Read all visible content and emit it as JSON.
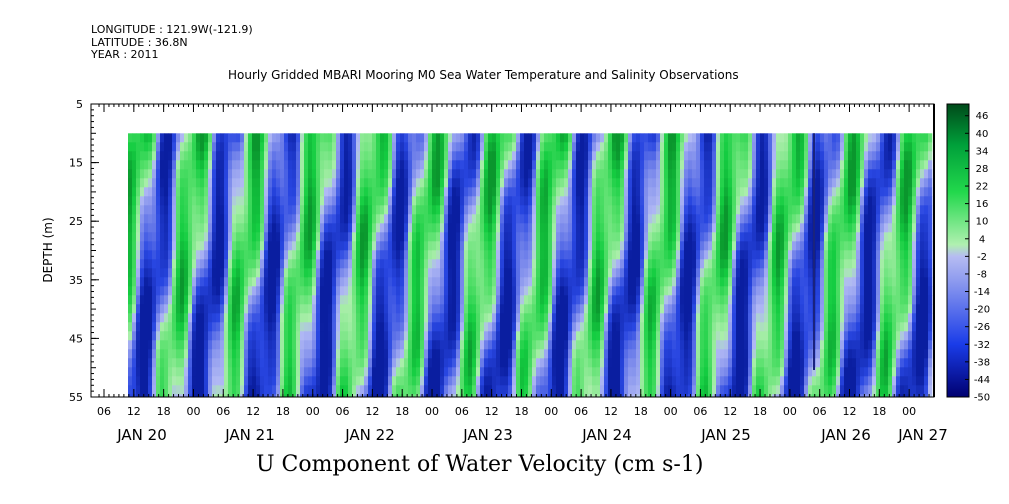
{
  "header": {
    "longitude": "LONGITUDE : 121.9W(-121.9)",
    "latitude": "LATITUDE : 36.8N",
    "year": "YEAR : 2011"
  },
  "chart_data": {
    "type": "heatmap",
    "title": "Hourly Gridded MBARI Mooring M0 Sea Water Temperature and Salinity Observations",
    "xlabel": "U Component of Water Velocity (cm s-1)",
    "ylabel": "DEPTH (m)",
    "y_ticks": [
      "5",
      "15",
      "25",
      "35",
      "45",
      "55"
    ],
    "ylim": [
      5,
      55
    ],
    "y_inverted": true,
    "data_depth_range": [
      10,
      55
    ],
    "x_hour_ticks": [
      "06",
      "12",
      "18",
      "00",
      "06",
      "12",
      "18",
      "00",
      "06",
      "12",
      "18",
      "00",
      "06",
      "12",
      "18",
      "00",
      "06",
      "12",
      "18",
      "00",
      "06",
      "12",
      "18",
      "00",
      "06",
      "12",
      "18",
      "00"
    ],
    "x_day_labels": [
      "JAN 20",
      "JAN 21",
      "JAN 22",
      "JAN 23",
      "JAN 24",
      "JAN 25",
      "JAN 26",
      "JAN 27"
    ],
    "colorbar_labels": [
      "46",
      "40",
      "34",
      "28",
      "22",
      "16",
      "10",
      "4",
      "-2",
      "-8",
      "-14",
      "-20",
      "-26",
      "-32",
      "-38",
      "-44",
      "-50"
    ],
    "colorbar_range": [
      -50,
      50
    ],
    "colors": {
      "positive_strong": "#00c83c",
      "positive_light": "#a8f0a8",
      "negative_light": "#a8b0f0",
      "negative_strong": "#1a3ce8"
    }
  }
}
